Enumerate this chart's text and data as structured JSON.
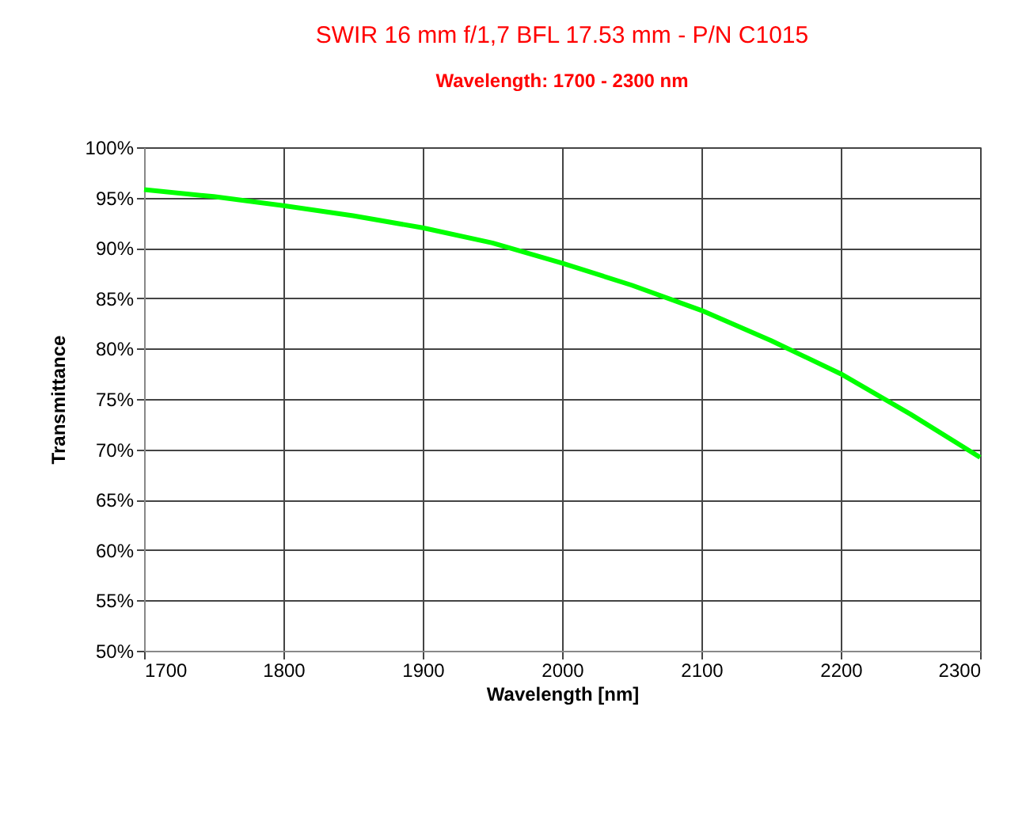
{
  "chart_data": {
    "type": "line",
    "title": "SWIR 16 mm f/1,7 BFL 17.53 mm - P/N C1015",
    "subtitle": "Wavelength: 1700 - 2300 nm",
    "xlabel": "Wavelength [nm]",
    "ylabel": "Transmittance",
    "x": [
      1700,
      1750,
      1800,
      1850,
      1900,
      1950,
      2000,
      2050,
      2100,
      2150,
      2200,
      2250,
      2300
    ],
    "series": [
      {
        "color": "#00ff00",
        "values": [
          95.8,
          95.1,
          94.2,
          93.2,
          92.0,
          90.5,
          88.5,
          86.3,
          83.8,
          80.8,
          77.5,
          73.5,
          69.2
        ]
      }
    ],
    "xlim": [
      1700,
      2300
    ],
    "xticks": [
      1700,
      1800,
      1900,
      2000,
      2100,
      2200,
      2300
    ],
    "ylim": [
      50,
      100
    ],
    "yticks": [
      {
        "value": 50,
        "label": "50%"
      },
      {
        "value": 55,
        "label": "55%"
      },
      {
        "value": 60,
        "label": "60%"
      },
      {
        "value": 65,
        "label": "65%"
      },
      {
        "value": 70,
        "label": "70%"
      },
      {
        "value": 75,
        "label": "75%"
      },
      {
        "value": 80,
        "label": "80%"
      },
      {
        "value": 85,
        "label": "85%"
      },
      {
        "value": 90,
        "label": "90%"
      },
      {
        "value": 95,
        "label": "95%"
      },
      {
        "value": 100,
        "label": "100%"
      }
    ],
    "grid": true,
    "marker": "none",
    "line_style": "solid"
  }
}
